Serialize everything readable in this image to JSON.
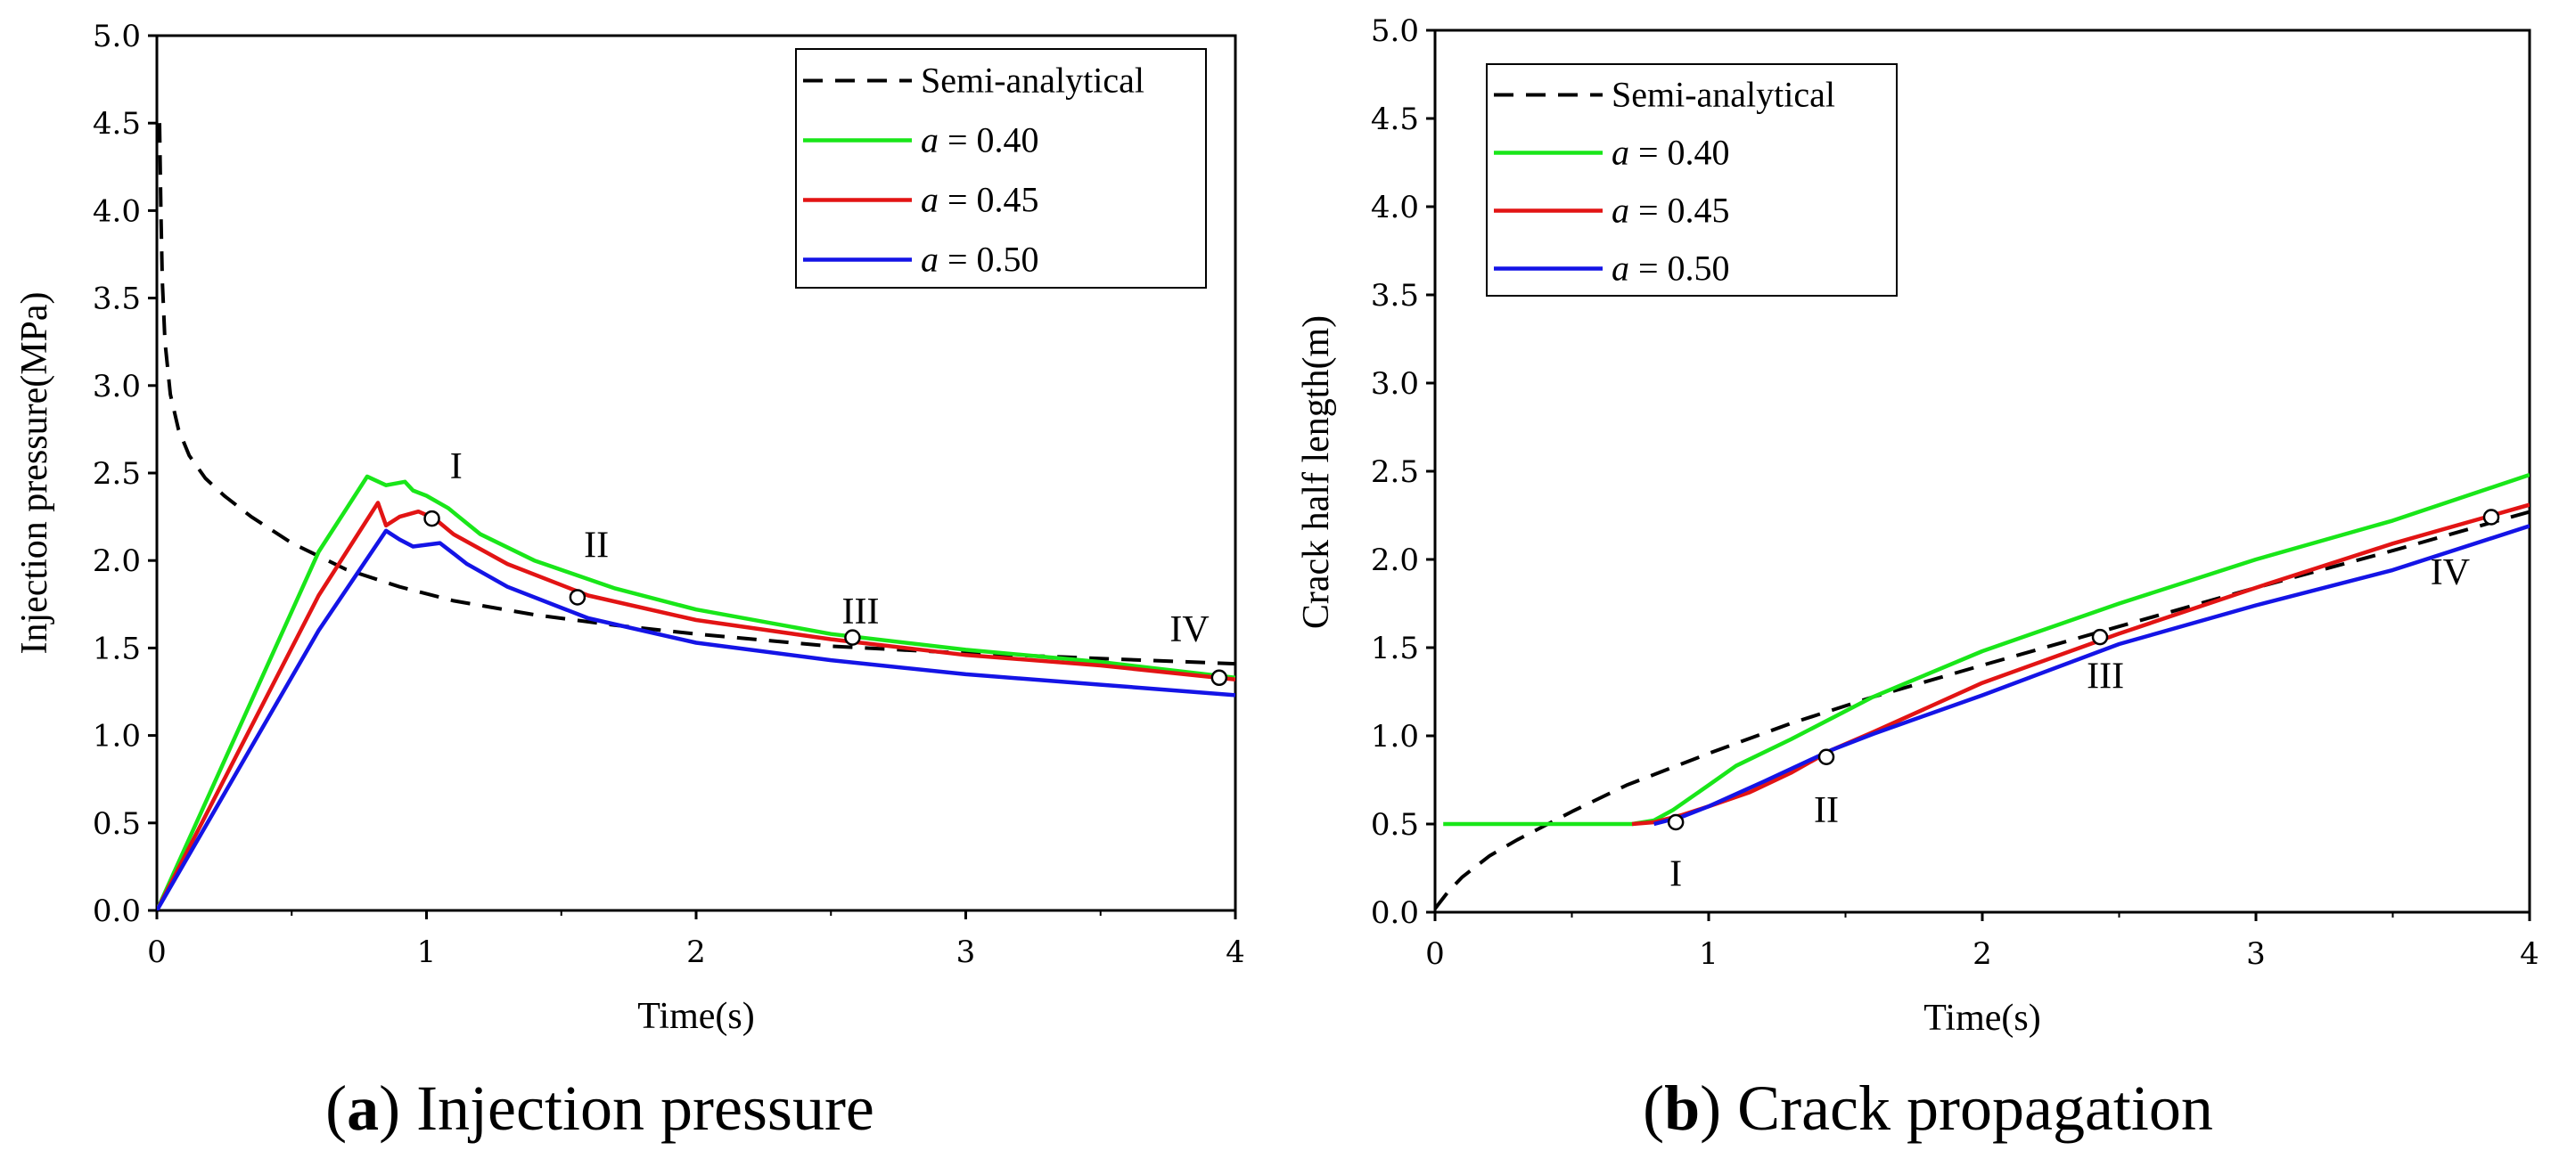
{
  "chart_data": [
    {
      "type": "line",
      "caption_letter": "a",
      "caption_text": "Injection pressure",
      "xlabel": "Time(s)",
      "ylabel": "Injection pressure(MPa)",
      "xlim": [
        0,
        4
      ],
      "ylim": [
        0,
        5.0
      ],
      "xticks": [
        0,
        1,
        2,
        3,
        4
      ],
      "xtick_labels": [
        "0",
        "1",
        "2",
        "3",
        "4"
      ],
      "yticks": [
        0,
        0.5,
        1.0,
        1.5,
        2.0,
        2.5,
        3.0,
        3.5,
        4.0,
        4.5,
        5.0
      ],
      "ytick_labels": [
        "0.0",
        "0.5",
        "1.0",
        "1.5",
        "2.0",
        "2.5",
        "3.0",
        "3.5",
        "4.0",
        "4.5",
        "5.0"
      ],
      "legend": {
        "position": "top-right",
        "entries": [
          {
            "prefix": "",
            "italic": "",
            "label": "Semi-analytical"
          },
          {
            "prefix": "",
            "italic": "a",
            "label": " = 0.40"
          },
          {
            "prefix": "",
            "italic": "a",
            "label": " = 0.45"
          },
          {
            "prefix": "",
            "italic": "a",
            "label": " = 0.50"
          }
        ]
      },
      "series": [
        {
          "name": "Semi-analytical",
          "color": "#000000",
          "dash": true,
          "x": [
            0.01,
            0.015,
            0.02,
            0.03,
            0.05,
            0.08,
            0.12,
            0.18,
            0.25,
            0.35,
            0.5,
            0.7,
            0.9,
            1.1,
            1.4,
            1.7,
            2.0,
            2.5,
            3.0,
            3.5,
            4.0
          ],
          "y": [
            4.5,
            4.0,
            3.6,
            3.25,
            2.95,
            2.75,
            2.6,
            2.47,
            2.37,
            2.25,
            2.1,
            1.95,
            1.85,
            1.77,
            1.69,
            1.63,
            1.58,
            1.51,
            1.47,
            1.44,
            1.41
          ]
        },
        {
          "name": "a = 0.40",
          "color": "#19e619",
          "dash": false,
          "x": [
            0,
            0.6,
            0.78,
            0.85,
            0.92,
            0.95,
            1.0,
            1.08,
            1.2,
            1.4,
            1.7,
            2.0,
            2.5,
            3.0,
            3.5,
            4.0
          ],
          "y": [
            0,
            2.05,
            2.48,
            2.43,
            2.45,
            2.4,
            2.37,
            2.3,
            2.15,
            2.0,
            1.84,
            1.72,
            1.58,
            1.49,
            1.42,
            1.33
          ]
        },
        {
          "name": "a = 0.45",
          "color": "#e21414",
          "dash": false,
          "x": [
            0,
            0.6,
            0.82,
            0.85,
            0.9,
            0.97,
            1.03,
            1.1,
            1.3,
            1.6,
            2.0,
            2.5,
            3.0,
            3.5,
            4.0
          ],
          "y": [
            0,
            1.8,
            2.33,
            2.2,
            2.25,
            2.28,
            2.24,
            2.15,
            1.98,
            1.8,
            1.66,
            1.55,
            1.46,
            1.4,
            1.32
          ]
        },
        {
          "name": "a = 0.50",
          "color": "#1414e6",
          "dash": false,
          "x": [
            0,
            0.6,
            0.85,
            0.9,
            0.95,
            1.05,
            1.1,
            1.15,
            1.3,
            1.6,
            2.0,
            2.5,
            3.0,
            3.5,
            4.0
          ],
          "y": [
            0,
            1.6,
            2.17,
            2.12,
            2.08,
            2.1,
            2.04,
            1.98,
            1.85,
            1.67,
            1.53,
            1.43,
            1.35,
            1.29,
            1.23
          ]
        }
      ],
      "markers": [
        {
          "label": "I",
          "x": 1.02,
          "y": 2.24,
          "label_dx": 0.09,
          "label_dy": 0.3
        },
        {
          "label": "II",
          "x": 1.56,
          "y": 1.79,
          "label_dx": 0.07,
          "label_dy": 0.3
        },
        {
          "label": "III",
          "x": 2.58,
          "y": 1.56,
          "label_dx": 0.03,
          "label_dy": 0.15
        },
        {
          "label": "IV",
          "x": 3.94,
          "y": 1.33,
          "label_dx": -0.11,
          "label_dy": 0.28
        }
      ]
    },
    {
      "type": "line",
      "caption_letter": "b",
      "caption_text": "Crack propagation",
      "xlabel": "Time(s)",
      "ylabel": "Crack half length(m)",
      "xlim": [
        0,
        4
      ],
      "ylim": [
        0,
        5.0
      ],
      "xticks": [
        0,
        1,
        2,
        3,
        4
      ],
      "xtick_labels": [
        "0",
        "1",
        "2",
        "3",
        "4"
      ],
      "yticks": [
        0,
        0.5,
        1.0,
        1.5,
        2.0,
        2.5,
        3.0,
        3.5,
        4.0,
        4.5,
        5.0
      ],
      "ytick_labels": [
        "0.0",
        "0.5",
        "1.0",
        "1.5",
        "2.0",
        "2.5",
        "3.0",
        "3.5",
        "4.0",
        "4.5",
        "5.0"
      ],
      "legend": {
        "position": "top-left",
        "entries": [
          {
            "prefix": "",
            "italic": "",
            "label": "Semi-analytical"
          },
          {
            "prefix": "",
            "italic": "a",
            "label": " = 0.40"
          },
          {
            "prefix": "",
            "italic": "a",
            "label": " = 0.45"
          },
          {
            "prefix": "",
            "italic": "a",
            "label": " = 0.50"
          }
        ]
      },
      "series": [
        {
          "name": "Semi-analytical",
          "color": "#000000",
          "dash": true,
          "x": [
            0,
            0.05,
            0.1,
            0.2,
            0.3,
            0.4,
            0.5,
            0.7,
            1.0,
            1.3,
            1.6,
            2.0,
            2.5,
            3.0,
            3.5,
            4.0
          ],
          "y": [
            0.02,
            0.12,
            0.2,
            0.32,
            0.41,
            0.49,
            0.57,
            0.72,
            0.9,
            1.07,
            1.22,
            1.4,
            1.62,
            1.84,
            2.05,
            2.27
          ]
        },
        {
          "name": "a = 0.40",
          "color": "#19e619",
          "dash": false,
          "x": [
            0.03,
            0.72,
            0.8,
            0.87,
            1.0,
            1.1,
            1.3,
            1.6,
            2.0,
            2.5,
            3.0,
            3.5,
            4.0
          ],
          "y": [
            0.5,
            0.5,
            0.52,
            0.58,
            0.72,
            0.83,
            0.98,
            1.22,
            1.48,
            1.75,
            2.0,
            2.22,
            2.48
          ]
        },
        {
          "name": "a = 0.45",
          "color": "#e21414",
          "dash": false,
          "x": [
            0.72,
            0.8,
            0.9,
            1.0,
            1.15,
            1.3,
            1.45,
            1.6,
            2.0,
            2.5,
            3.0,
            3.5,
            4.0
          ],
          "y": [
            0.5,
            0.51,
            0.55,
            0.6,
            0.68,
            0.79,
            0.92,
            1.02,
            1.3,
            1.58,
            1.84,
            2.09,
            2.31
          ]
        },
        {
          "name": "a = 0.50",
          "color": "#1414e6",
          "dash": false,
          "x": [
            0.8,
            0.9,
            1.0,
            1.2,
            1.45,
            1.6,
            2.0,
            2.5,
            3.0,
            3.5,
            4.0
          ],
          "y": [
            0.5,
            0.54,
            0.6,
            0.74,
            0.92,
            1.01,
            1.23,
            1.52,
            1.74,
            1.94,
            2.19
          ]
        }
      ],
      "markers": [
        {
          "label": "I",
          "x": 0.88,
          "y": 0.51,
          "label_dx": 0.0,
          "label_dy": -0.29
        },
        {
          "label": "II",
          "x": 1.43,
          "y": 0.88,
          "label_dx": 0.0,
          "label_dy": -0.3
        },
        {
          "label": "III",
          "x": 2.43,
          "y": 1.56,
          "label_dx": 0.02,
          "label_dy": -0.22
        },
        {
          "label": "IV",
          "x": 3.86,
          "y": 2.24,
          "label_dx": -0.15,
          "label_dy": -0.31
        }
      ]
    }
  ]
}
